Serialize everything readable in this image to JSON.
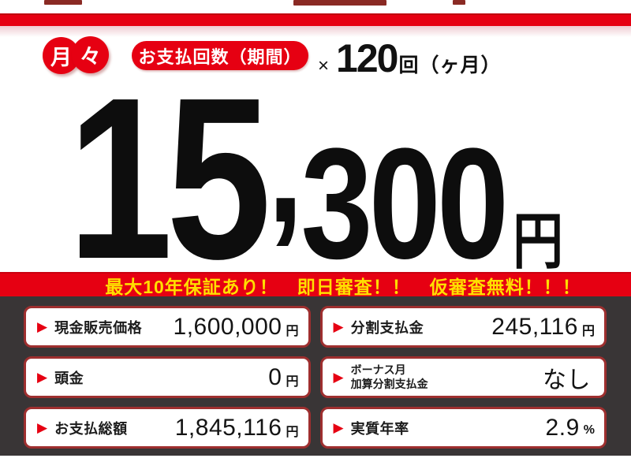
{
  "colors": {
    "brand_red": "#e60012",
    "dark_panel": "#393536",
    "box_border_red": "#9e2f2f",
    "banner_yellow": "#ffdf00",
    "text_black": "#111111"
  },
  "icons": {
    "triangle": "▶"
  },
  "badge": {
    "char1": "月",
    "char2": "々"
  },
  "header": {
    "pill_label": "お支払回数（期間）",
    "times_symbol": "×",
    "count": "120",
    "count_unit": "回（ヶ月）"
  },
  "price": {
    "lead": "15",
    "comma": ",",
    "rest": "300",
    "unit": "円"
  },
  "banner": {
    "text": "最大10年保証あり！　即日審査！！　仮審査無料！！！"
  },
  "table": {
    "rows": [
      {
        "label": "現金販売価格",
        "value": "1,600,000",
        "unit": "円"
      },
      {
        "label": "分割支払金",
        "value": "245,116",
        "unit": "円"
      },
      {
        "label": "頭金",
        "value": "0",
        "unit": "円"
      },
      {
        "label": "ボーナス月",
        "label2": "加算分割支払金",
        "value": "なし",
        "unit": ""
      },
      {
        "label": "お支払総額",
        "value": "1,845,116",
        "unit": "円"
      },
      {
        "label": "実質年率",
        "value": "2.9",
        "unit": "%"
      }
    ]
  }
}
